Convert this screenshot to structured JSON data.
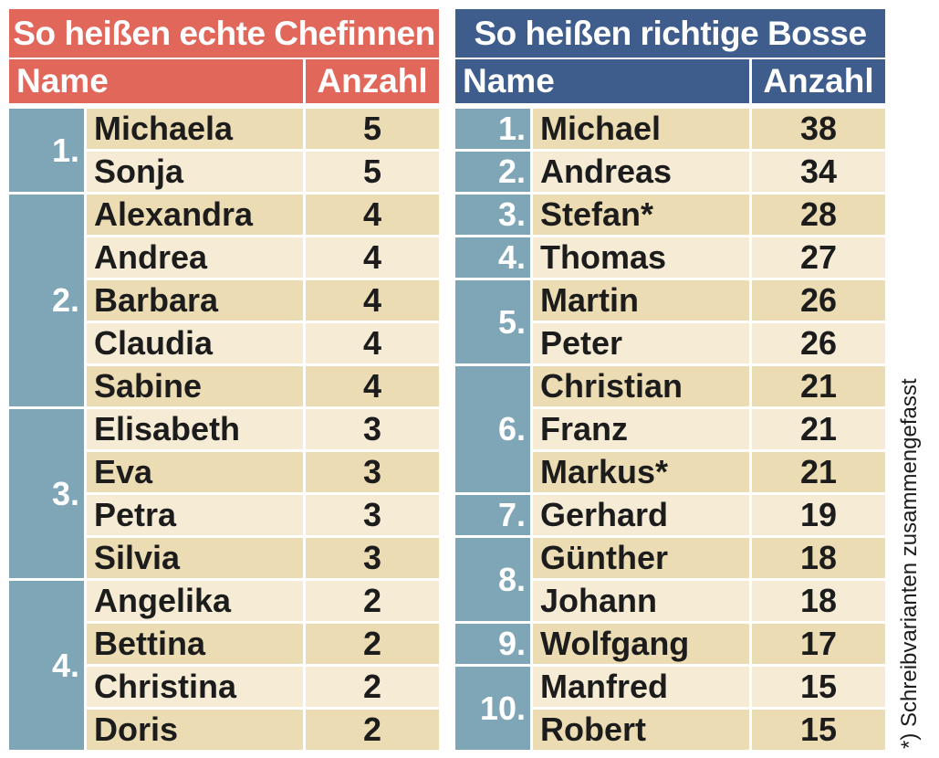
{
  "tables": [
    {
      "title": "So heißen echte Chefinnen",
      "header": {
        "name": "Name",
        "count": "Anzahl"
      },
      "groups": [
        {
          "rank": "1.",
          "rows": [
            {
              "name": "Michaela",
              "count": "5"
            },
            {
              "name": "Sonja",
              "count": "5"
            }
          ]
        },
        {
          "rank": "2.",
          "rows": [
            {
              "name": "Alexandra",
              "count": "4"
            },
            {
              "name": "Andrea",
              "count": "4"
            },
            {
              "name": "Barbara",
              "count": "4"
            },
            {
              "name": "Claudia",
              "count": "4"
            },
            {
              "name": "Sabine",
              "count": "4"
            }
          ]
        },
        {
          "rank": "3.",
          "rows": [
            {
              "name": "Elisabeth",
              "count": "3"
            },
            {
              "name": "Eva",
              "count": "3"
            },
            {
              "name": "Petra",
              "count": "3"
            },
            {
              "name": "Silvia",
              "count": "3"
            }
          ]
        },
        {
          "rank": "4.",
          "rows": [
            {
              "name": "Angelika",
              "count": "2"
            },
            {
              "name": "Bettina",
              "count": "2"
            },
            {
              "name": "Christina",
              "count": "2"
            },
            {
              "name": "Doris",
              "count": "2"
            }
          ]
        }
      ]
    },
    {
      "title": "So heißen richtige Bosse",
      "header": {
        "name": "Name",
        "count": "Anzahl"
      },
      "groups": [
        {
          "rank": "1.",
          "rows": [
            {
              "name": "Michael",
              "count": "38"
            }
          ]
        },
        {
          "rank": "2.",
          "rows": [
            {
              "name": "Andreas",
              "count": "34"
            }
          ]
        },
        {
          "rank": "3.",
          "rows": [
            {
              "name": "Stefan*",
              "count": "28"
            }
          ]
        },
        {
          "rank": "4.",
          "rows": [
            {
              "name": "Thomas",
              "count": "27"
            }
          ]
        },
        {
          "rank": "5.",
          "rows": [
            {
              "name": "Martin",
              "count": "26"
            },
            {
              "name": "Peter",
              "count": "26"
            }
          ]
        },
        {
          "rank": "6.",
          "rows": [
            {
              "name": "Christian",
              "count": "21"
            },
            {
              "name": "Franz",
              "count": "21"
            },
            {
              "name": "Markus*",
              "count": "21"
            }
          ]
        },
        {
          "rank": "7.",
          "rows": [
            {
              "name": "Gerhard",
              "count": "19"
            }
          ]
        },
        {
          "rank": "8.",
          "rows": [
            {
              "name": "Günther",
              "count": "18"
            },
            {
              "name": "Johann",
              "count": "18"
            }
          ]
        },
        {
          "rank": "9.",
          "rows": [
            {
              "name": "Wolfgang",
              "count": "17"
            }
          ]
        },
        {
          "rank": "10.",
          "rows": [
            {
              "name": "Manfred",
              "count": "15"
            },
            {
              "name": "Robert",
              "count": "15"
            }
          ]
        }
      ]
    }
  ],
  "footnote": "*) Schreibvarianten zusammengefasst",
  "colors": {
    "left_header": "#e2675b",
    "right_header": "#3f5d8c",
    "rank_cell": "#7fa6b6",
    "row_dark": "#ecdcb4",
    "row_light": "#f6ecd6"
  }
}
